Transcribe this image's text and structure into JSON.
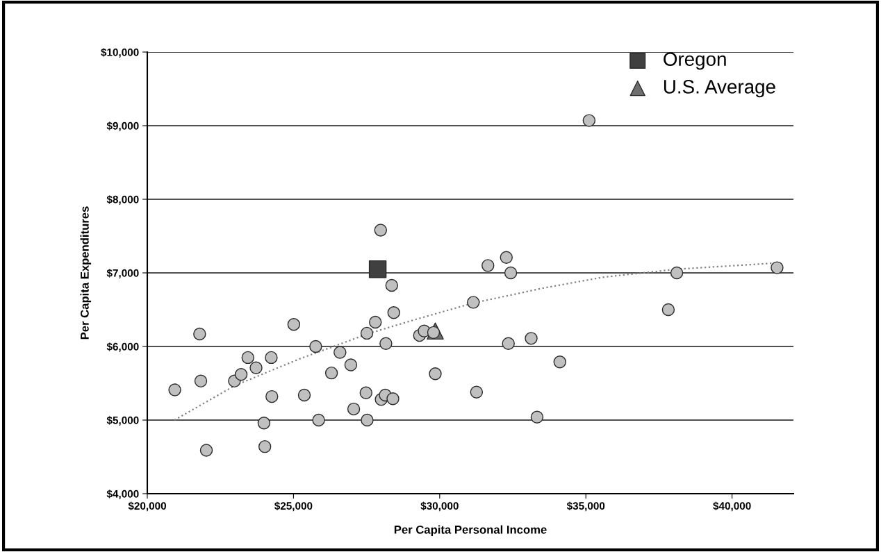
{
  "chart_data": {
    "type": "scatter",
    "xlabel": "Per Capita Personal Income",
    "ylabel": "Per Capita Expenditures",
    "xlim": [
      20000,
      42100
    ],
    "ylim": [
      4000,
      10000
    ],
    "xticks": [
      {
        "value": 20000,
        "label": "$20,000"
      },
      {
        "value": 25000,
        "label": "$25,000"
      },
      {
        "value": 30000,
        "label": "$30,000"
      },
      {
        "value": 35000,
        "label": "$35,000"
      },
      {
        "value": 40000,
        "label": "$40,000"
      }
    ],
    "yticks": [
      {
        "value": 4000,
        "label": "$4,000"
      },
      {
        "value": 5000,
        "label": "$5,000"
      },
      {
        "value": 6000,
        "label": "$6,000"
      },
      {
        "value": 7000,
        "label": "$7,000"
      },
      {
        "value": 8000,
        "label": "$8,000"
      },
      {
        "value": 9000,
        "label": "$9,000"
      },
      {
        "value": 10000,
        "label": "$10,000"
      }
    ],
    "grid": "y",
    "legend": "top right",
    "series": [
      {
        "marker": "circle",
        "color": "#c0c0c0",
        "x": [
          20940,
          21790,
          21830,
          22020,
          22980,
          23210,
          23440,
          23720,
          23990,
          24020,
          24240,
          24260,
          25010,
          25370,
          25760,
          25860,
          26300,
          26590,
          26960,
          27060,
          27480,
          27510,
          27520,
          27800,
          27980,
          28000,
          28140,
          28160,
          28360,
          28400,
          28430,
          29310,
          29470,
          29790,
          29850,
          31650,
          32280,
          32430,
          31150,
          38110,
          41540,
          37820,
          31260,
          32350,
          33130,
          34110,
          33330,
          35110
        ],
        "values": [
          5410,
          6170,
          5530,
          4590,
          5530,
          5620,
          5850,
          5710,
          4960,
          4640,
          5850,
          5320,
          6300,
          5340,
          6000,
          5000,
          5640,
          5920,
          5750,
          5150,
          5370,
          6180,
          5000,
          6330,
          7580,
          5280,
          5340,
          6040,
          6830,
          5290,
          6460,
          6150,
          6210,
          6190,
          5630,
          7100,
          7210,
          7000,
          6600,
          7000,
          7070,
          6500,
          5380,
          6040,
          6110,
          5790,
          5040,
          9070
        ]
      },
      {
        "type": "line",
        "line_style": "dotted",
        "color": "#808080",
        "x": [
          20930,
          23000,
          25200,
          27600,
          29200,
          31150,
          33500,
          35570,
          38100,
          41350
        ],
        "values": [
          5000,
          5470,
          5830,
          6180,
          6370,
          6590,
          6790,
          6940,
          7050,
          7130
        ]
      },
      {
        "name": "Oregon",
        "marker": "square",
        "color": "#404040",
        "x": [
          27880
        ],
        "values": [
          7050
        ]
      },
      {
        "name": "U.S. Average",
        "marker": "triangle",
        "color": "#6e6e6e",
        "x": [
          29850
        ],
        "values": [
          6210
        ]
      }
    ]
  }
}
